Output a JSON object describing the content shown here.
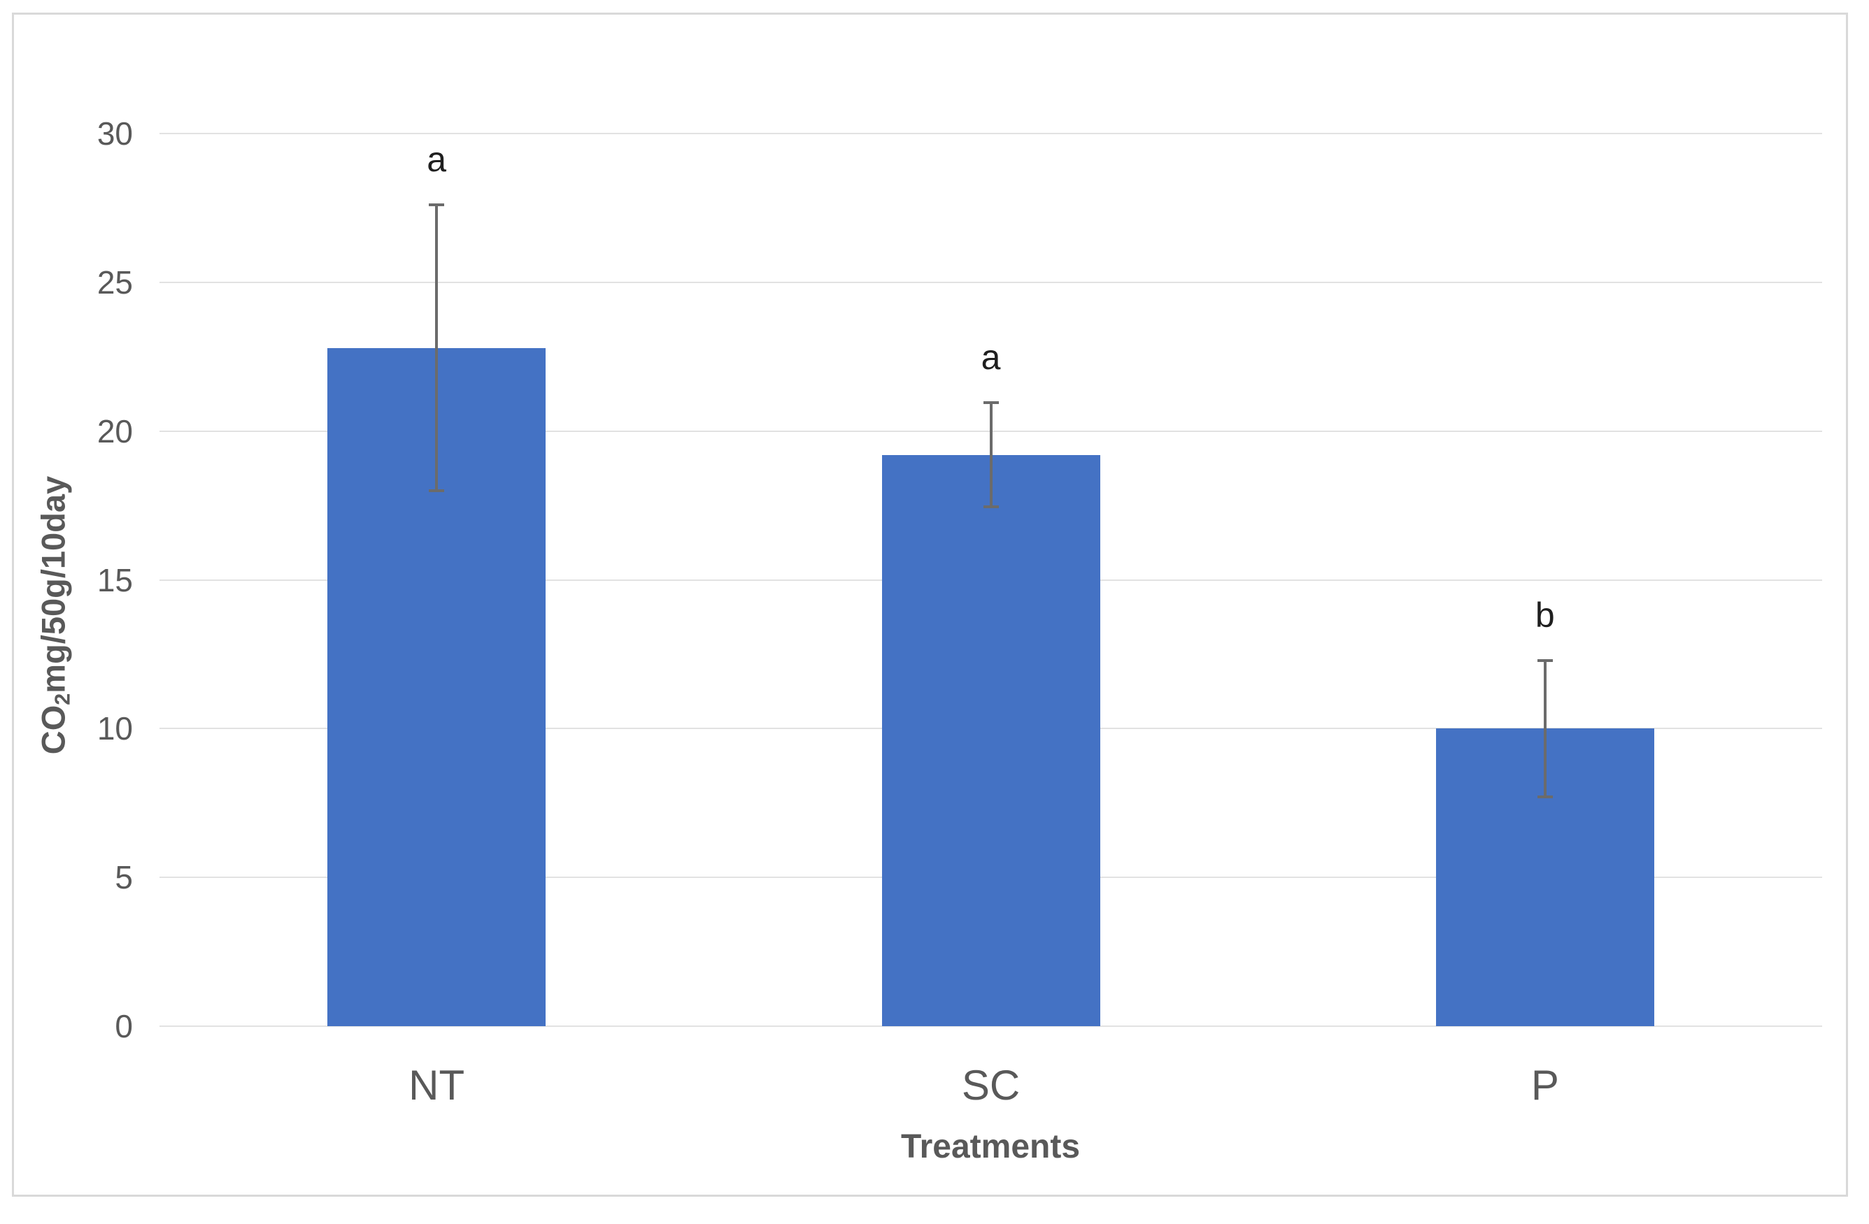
{
  "figure": {
    "background_color": "#ffffff",
    "frame_border_color": "#d9d9d9"
  },
  "chart_data": {
    "type": "bar",
    "title": "",
    "categories": [
      "NT",
      "SC",
      "P"
    ],
    "values": [
      22.8,
      19.2,
      10.0
    ],
    "error_bars": [
      4.8,
      1.75,
      2.3
    ],
    "significance_letters": [
      "a",
      "a",
      "b"
    ],
    "xlabel": "Treatments",
    "ylabel": "CO2mg/50g/10day",
    "ylabel_parts": {
      "prefix": "CO",
      "subscript": "2",
      "suffix": "mg/50g/10day"
    },
    "yticks": [
      0,
      5,
      10,
      15,
      20,
      25,
      30
    ],
    "ylim": [
      0,
      30
    ],
    "grid": true,
    "legend": "none",
    "bar_color": "#4472C4",
    "error_bar_color": "#6b6b6b",
    "gridline_color": "#e2e2e2",
    "axis_text_color": "#595959",
    "letter_color": "#1f1f1f"
  }
}
